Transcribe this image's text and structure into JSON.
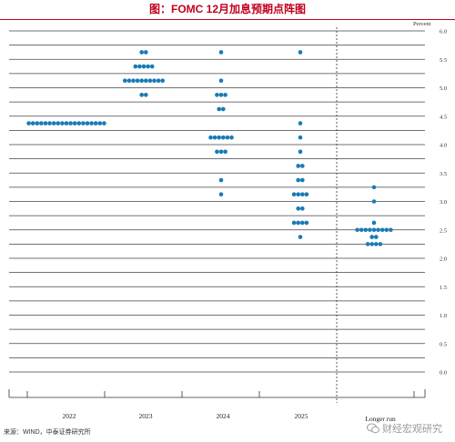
{
  "title": "图：FOMC 12月加息预期点阵图",
  "footer_source": "来源：WIND，中泰证券研究所",
  "watermark_text": "财经宏观研究",
  "colors": {
    "dot": "#1a7bb5",
    "title": "#c0001e",
    "grid": "#444444",
    "divider": "#333333"
  },
  "chart_data": {
    "type": "scatter",
    "title": "FOMC 12月加息预期点阵图",
    "ylabel": "Percent",
    "ylim": [
      0.0,
      6.0
    ],
    "yticks": [
      0.0,
      0.25,
      0.5,
      0.75,
      1.0,
      1.25,
      1.5,
      1.75,
      2.0,
      2.25,
      2.5,
      2.75,
      3.0,
      3.25,
      3.5,
      3.75,
      4.0,
      4.25,
      4.5,
      4.75,
      5.0,
      5.25,
      5.5,
      5.75,
      6.0
    ],
    "ytick_labels": [
      "0.0",
      "",
      "0.5",
      "",
      "1.0",
      "",
      "1.5",
      "",
      "2.0",
      "",
      "2.5",
      "",
      "3.0",
      "",
      "3.5",
      "",
      "4.0",
      "",
      "4.5",
      "",
      "5.0",
      "",
      "5.5",
      "",
      "6.0"
    ],
    "categories": [
      "2022",
      "2023",
      "2024",
      "2025",
      "Longer run"
    ],
    "grid": true,
    "points": [
      {
        "category": "2022",
        "rates": [
          {
            "rate": 4.375,
            "count": 19
          }
        ]
      },
      {
        "category": "2023",
        "rates": [
          {
            "rate": 5.625,
            "count": 2
          },
          {
            "rate": 5.375,
            "count": 5
          },
          {
            "rate": 5.125,
            "count": 10
          },
          {
            "rate": 4.875,
            "count": 2
          }
        ]
      },
      {
        "category": "2024",
        "rates": [
          {
            "rate": 5.625,
            "count": 1
          },
          {
            "rate": 5.125,
            "count": 1
          },
          {
            "rate": 4.875,
            "count": 3
          },
          {
            "rate": 4.625,
            "count": 2
          },
          {
            "rate": 4.125,
            "count": 6
          },
          {
            "rate": 3.875,
            "count": 3
          },
          {
            "rate": 3.375,
            "count": 1
          },
          {
            "rate": 3.125,
            "count": 1
          }
        ]
      },
      {
        "category": "2025",
        "rates": [
          {
            "rate": 5.625,
            "count": 1
          },
          {
            "rate": 4.375,
            "count": 1
          },
          {
            "rate": 4.125,
            "count": 1
          },
          {
            "rate": 3.875,
            "count": 1
          },
          {
            "rate": 3.625,
            "count": 2
          },
          {
            "rate": 3.375,
            "count": 2
          },
          {
            "rate": 3.125,
            "count": 4
          },
          {
            "rate": 2.875,
            "count": 2
          },
          {
            "rate": 2.625,
            "count": 4
          },
          {
            "rate": 2.375,
            "count": 1
          }
        ]
      },
      {
        "category": "Longer run",
        "rates": [
          {
            "rate": 3.25,
            "count": 1
          },
          {
            "rate": 3.0,
            "count": 1
          },
          {
            "rate": 2.625,
            "count": 1
          },
          {
            "rate": 2.5,
            "count": 9
          },
          {
            "rate": 2.375,
            "count": 2
          },
          {
            "rate": 2.25,
            "count": 4
          }
        ]
      }
    ]
  }
}
